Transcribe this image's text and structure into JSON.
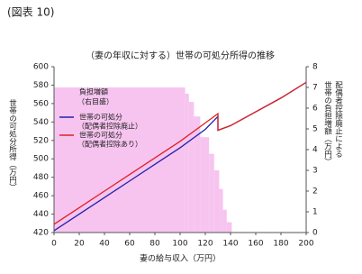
{
  "header": "(図表 10)",
  "chart_data": {
    "type": "line",
    "title": "（妻の年収に対する）世帯の可処分所得の推移",
    "xlabel": "妻の給与収入（万円）",
    "ylabel": "世帯の可処分所得（万円）",
    "y2label": [
      "配偶者控除廃止による",
      "世帯の負担増額（万円）"
    ],
    "xlim": [
      0,
      200
    ],
    "xticks": [
      0,
      20,
      40,
      60,
      80,
      100,
      120,
      140,
      160,
      180,
      200
    ],
    "ylim": [
      420,
      600
    ],
    "yticks": [
      420,
      440,
      460,
      480,
      500,
      520,
      540,
      560,
      580,
      600
    ],
    "y2lim": [
      0,
      8
    ],
    "y2ticks": [
      0,
      1,
      2,
      3,
      4,
      5,
      6,
      7,
      8
    ],
    "area": {
      "name": "負担増額",
      "subname": "（右目盛）",
      "color": "#f7c4f0",
      "axis": "y2",
      "bins": [
        0,
        104,
        107,
        111,
        116,
        123,
        127,
        131,
        134,
        137,
        141
      ],
      "values": [
        7.0,
        6.7,
        6.3,
        5.6,
        4.6,
        3.8,
        3.0,
        2.1,
        1.1,
        0.5
      ]
    },
    "x": [
      0,
      20,
      40,
      60,
      80,
      100,
      120,
      130,
      130,
      140,
      160,
      180,
      200
    ],
    "series": [
      {
        "name": "世帯の可処分",
        "subname": "（配偶者控除廃止）",
        "color": "#2222aa",
        "values": [
          422,
          440,
          458,
          476,
          494,
          512,
          532,
          546,
          531,
          536,
          551,
          566,
          583
        ]
      },
      {
        "name": "世帯の可処分",
        "subname": "（配偶者控除あり）",
        "color": "#dd2222",
        "values": [
          429,
          447,
          465,
          483,
          501,
          519,
          539,
          549,
          531,
          536,
          551,
          566,
          583
        ]
      }
    ]
  }
}
